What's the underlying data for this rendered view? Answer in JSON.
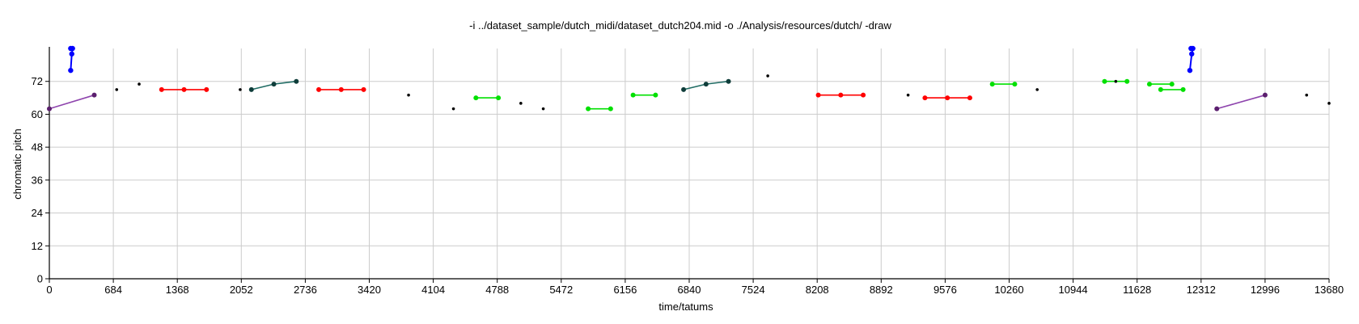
{
  "chart_data": {
    "type": "scatter",
    "title": "-i ../dataset_sample/dutch_midi/dataset_dutch204.mid -o ./Analysis/resources/dutch/ -draw",
    "xlabel": "time/tatums",
    "ylabel": "chromatic pitch",
    "xlim": [
      0,
      13680
    ],
    "ylim": [
      0,
      84
    ],
    "x_ticks": [
      0,
      684,
      1368,
      2052,
      2736,
      3420,
      4104,
      4788,
      5472,
      6156,
      6840,
      7524,
      8208,
      8892,
      9576,
      10260,
      10944,
      11628,
      12312,
      12996,
      13680
    ],
    "y_ticks": [
      0,
      12,
      24,
      36,
      48,
      60,
      72
    ],
    "grid": true,
    "colors": {
      "blue": "#0000ff",
      "purple": "#8e44ad",
      "purple_point": "#5b1f6e",
      "teal": "#1f6b63",
      "teal_point": "#0f3d3a",
      "red": "#ff0000",
      "green": "#00e000",
      "black": "#000000",
      "grid": "#cccccc"
    },
    "series": [
      {
        "style": "blue",
        "points": [
          [
            228,
            84
          ],
          [
            248,
            84
          ],
          [
            240,
            82
          ],
          [
            228,
            76
          ]
        ]
      },
      {
        "style": "blue",
        "points": [
          [
            12204,
            84
          ],
          [
            12224,
            84
          ],
          [
            12212,
            82
          ],
          [
            12192,
            76
          ]
        ]
      },
      {
        "style": "purple",
        "points": [
          [
            0,
            62
          ],
          [
            480,
            67
          ]
        ]
      },
      {
        "style": "purple",
        "points": [
          [
            12480,
            62
          ],
          [
            12996,
            67
          ]
        ]
      },
      {
        "style": "teal",
        "points": [
          [
            2160,
            69
          ],
          [
            2400,
            71
          ],
          [
            2640,
            72
          ]
        ]
      },
      {
        "style": "teal",
        "points": [
          [
            6780,
            69
          ],
          [
            7020,
            71
          ],
          [
            7260,
            72
          ]
        ]
      },
      {
        "style": "red",
        "points": [
          [
            1200,
            69
          ],
          [
            1440,
            69
          ],
          [
            1680,
            69
          ]
        ]
      },
      {
        "style": "red",
        "points": [
          [
            2880,
            69
          ],
          [
            3120,
            69
          ],
          [
            3360,
            69
          ]
        ]
      },
      {
        "style": "red",
        "points": [
          [
            8220,
            67
          ],
          [
            8460,
            67
          ],
          [
            8700,
            67
          ]
        ]
      },
      {
        "style": "red",
        "points": [
          [
            9360,
            66
          ],
          [
            9600,
            66
          ],
          [
            9840,
            66
          ]
        ]
      },
      {
        "style": "green",
        "points": [
          [
            4560,
            66
          ],
          [
            4800,
            66
          ]
        ]
      },
      {
        "style": "green",
        "points": [
          [
            5760,
            62
          ],
          [
            6000,
            62
          ]
        ]
      },
      {
        "style": "green",
        "points": [
          [
            6240,
            67
          ],
          [
            6480,
            67
          ]
        ]
      },
      {
        "style": "green",
        "points": [
          [
            10080,
            71
          ],
          [
            10320,
            71
          ]
        ]
      },
      {
        "style": "green",
        "points": [
          [
            11280,
            72
          ],
          [
            11520,
            72
          ]
        ]
      },
      {
        "style": "green",
        "points": [
          [
            11760,
            71
          ],
          [
            12000,
            71
          ]
        ]
      },
      {
        "style": "green",
        "points": [
          [
            11880,
            69
          ],
          [
            12120,
            69
          ]
        ]
      },
      {
        "style": "black",
        "points": [
          [
            720,
            69
          ]
        ]
      },
      {
        "style": "black",
        "points": [
          [
            960,
            71
          ]
        ]
      },
      {
        "style": "black",
        "points": [
          [
            2040,
            69
          ]
        ]
      },
      {
        "style": "black",
        "points": [
          [
            3840,
            67
          ]
        ]
      },
      {
        "style": "black",
        "points": [
          [
            4320,
            62
          ]
        ]
      },
      {
        "style": "black",
        "points": [
          [
            5040,
            64
          ]
        ]
      },
      {
        "style": "black",
        "points": [
          [
            5280,
            62
          ]
        ]
      },
      {
        "style": "black",
        "points": [
          [
            7680,
            74
          ]
        ]
      },
      {
        "style": "black",
        "points": [
          [
            9180,
            67
          ]
        ]
      },
      {
        "style": "black",
        "points": [
          [
            10560,
            69
          ]
        ]
      },
      {
        "style": "black",
        "points": [
          [
            11400,
            72
          ]
        ]
      },
      {
        "style": "black",
        "points": [
          [
            13440,
            67
          ]
        ]
      },
      {
        "style": "black",
        "points": [
          [
            13680,
            64
          ]
        ]
      }
    ]
  }
}
